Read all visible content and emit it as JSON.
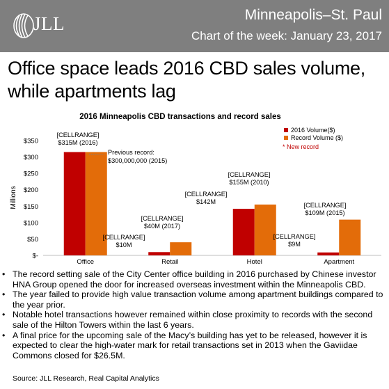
{
  "header": {
    "brand": "JLL",
    "city": "Minneapolis–St. Paul",
    "subtitle": "Chart of the week: January 23, 2017"
  },
  "headline": "Office space leads 2016 CBD sales volume, while apartments lag",
  "colors": {
    "header_bg": "#7f7f7f",
    "series_2016": "#c00000",
    "series_record": "#e36c09",
    "new_record_text": "#c00000"
  },
  "chart_data": {
    "type": "bar",
    "title": "2016 Minneapolis CBD transactions and record sales",
    "ylabel": "Millions",
    "ylim": [
      0,
      350
    ],
    "yticks": [
      0,
      50,
      100,
      150,
      200,
      250,
      300,
      350
    ],
    "ytick_labels": [
      "$-",
      "$50",
      "$100",
      "$150",
      "$200",
      "$250",
      "$300",
      "$350"
    ],
    "categories": [
      "Office",
      "Retail",
      "Hotel",
      "Apartment"
    ],
    "series": [
      {
        "name": "2016 Volume($)",
        "values": [
          315,
          10,
          142,
          9
        ]
      },
      {
        "name": "Record Volume ($)",
        "values": [
          315,
          40,
          155,
          109
        ]
      }
    ],
    "legend_position": "top-right",
    "legend_note": "* New record",
    "data_labels": [
      [
        "[CELLRANGE]",
        "$315M (2016)"
      ],
      [
        "[CELLRANGE]",
        "$10M"
      ],
      [
        "[CELLRANGE]",
        "$40M (2017)"
      ],
      [
        "[CELLRANGE]",
        "$142M"
      ],
      [
        "[CELLRANGE]",
        "$155M (2010)"
      ],
      [
        "[CELLRANGE]",
        "$9M"
      ],
      [
        "[CELLRANGE]",
        "$109M (2015)"
      ]
    ],
    "annotation": [
      "Previous record:",
      "$300,000,000 (2015)"
    ],
    "grid": false
  },
  "bullets": [
    "The record setting sale of the City Center office building in 2016 purchased by Chinese investor HNA Group opened the door for increased overseas investment within the Minneapolis CBD.",
    "The year failed to provide high value transaction volume among apartment buildings compared to the year prior.",
    "Notable hotel transactions however remained within close proximity to records with the second sale of the Hilton Towers within the last 6 years.",
    "A final price for the upcoming sale of the Macy’s building has yet to be released, however it is expected to clear the high-water mark for retail transactions set in 2013 when the Gaviidae Commons closed for $26.5M."
  ],
  "source": "Source: JLL Research, Real Capital Analytics"
}
